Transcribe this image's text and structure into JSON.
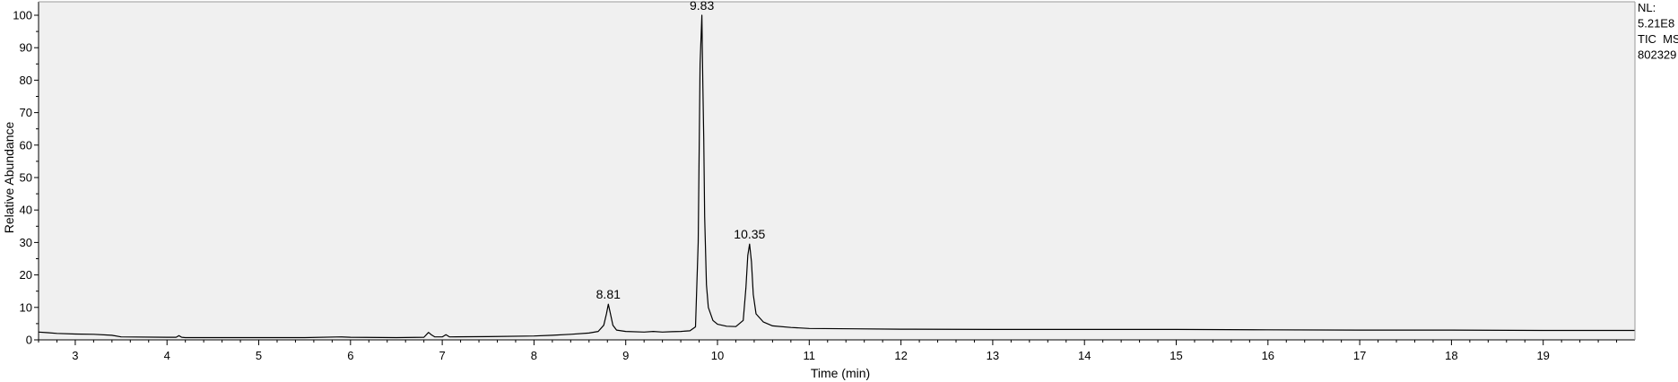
{
  "chart_data": {
    "type": "line",
    "title": "",
    "xlabel": "Time (min)",
    "ylabel": "Relative Abundance",
    "xlim": [
      2.6,
      20.0
    ],
    "ylim": [
      0,
      100
    ],
    "grid": false,
    "x_ticks": [
      3,
      4,
      5,
      6,
      7,
      8,
      9,
      10,
      11,
      12,
      13,
      14,
      15,
      16,
      17,
      18,
      19
    ],
    "y_ticks": [
      0,
      10,
      20,
      30,
      40,
      50,
      60,
      70,
      80,
      90,
      100
    ],
    "annotations": [
      {
        "x": 8.81,
        "y": 11,
        "label": "8.81"
      },
      {
        "x": 9.83,
        "y": 100,
        "label": "9.83"
      },
      {
        "x": 10.35,
        "y": 29.5,
        "label": "10.35"
      }
    ],
    "info_lines": [
      "NL:",
      "5.21E8",
      "TIC  MS",
      "802329"
    ],
    "series": [
      {
        "x": [
          2.6,
          2.7,
          2.8,
          3.0,
          3.2,
          3.4,
          3.5,
          4.0,
          4.1,
          4.13,
          4.16,
          4.2,
          4.5,
          5.0,
          5.5,
          5.9,
          6.0,
          6.5,
          6.8,
          6.85,
          6.88,
          6.92,
          7.0,
          7.04,
          7.08,
          7.5,
          8.0,
          8.2,
          8.4,
          8.6,
          8.7,
          8.76,
          8.79,
          8.81,
          8.83,
          8.86,
          8.9,
          9.0,
          9.2,
          9.3,
          9.4,
          9.5,
          9.6,
          9.7,
          9.76,
          9.79,
          9.81,
          9.83,
          9.84,
          9.85,
          9.86,
          9.88,
          9.9,
          9.95,
          10.0,
          10.1,
          10.2,
          10.28,
          10.31,
          10.33,
          10.35,
          10.37,
          10.39,
          10.42,
          10.5,
          10.6,
          10.8,
          11.0,
          11.5,
          12.0,
          13.0,
          14.0,
          15.0,
          16.0,
          17.0,
          18.0,
          19.0,
          19.5,
          20.0
        ],
        "y": [
          2.4,
          2.2,
          2.0,
          1.8,
          1.7,
          1.4,
          0.9,
          0.8,
          0.8,
          1.3,
          0.8,
          0.7,
          0.7,
          0.7,
          0.7,
          0.9,
          0.8,
          0.7,
          0.8,
          2.3,
          1.6,
          0.9,
          0.9,
          1.6,
          0.9,
          1.0,
          1.2,
          1.4,
          1.7,
          2.1,
          2.6,
          4.5,
          8.0,
          11.0,
          8.5,
          4.5,
          3.0,
          2.6,
          2.4,
          2.6,
          2.4,
          2.5,
          2.6,
          2.8,
          4.0,
          30.0,
          85.0,
          100.0,
          80.0,
          62.0,
          38.0,
          17.0,
          10.0,
          6.0,
          4.8,
          4.2,
          4.1,
          6.0,
          16.0,
          26.0,
          29.5,
          24.0,
          14.0,
          8.0,
          5.5,
          4.3,
          3.8,
          3.5,
          3.4,
          3.3,
          3.2,
          3.2,
          3.2,
          3.1,
          3.0,
          3.0,
          2.9,
          2.9,
          2.9
        ]
      }
    ]
  }
}
